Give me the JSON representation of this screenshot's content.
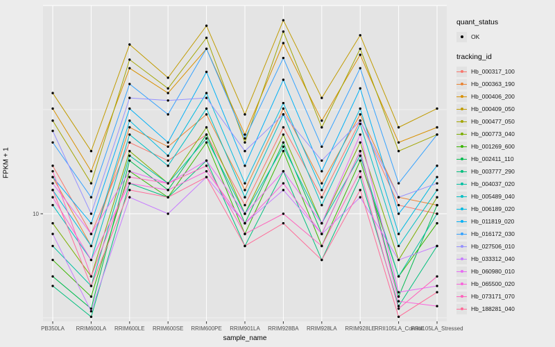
{
  "figure": {
    "background": "#ECECEC",
    "panel_background": "#E4E4E4",
    "gridline_color": "#FFFFFF",
    "tick_label_color": "#4D4D4D",
    "point_color": "#000000"
  },
  "legend": {
    "quant_status_title": "quant_status",
    "quant_status_items": [
      {
        "label": "OK",
        "shape": "point",
        "color": "#000000"
      }
    ],
    "tracking_id_title": "tracking_id"
  },
  "chart_data": {
    "type": "line",
    "title": "",
    "xlabel": "sample_name",
    "ylabel": "FPKM + 1",
    "y_scale": "log10",
    "ylim": [
      3,
      100
    ],
    "y_ticks": [
      10
    ],
    "y_minor_ticks": [
      3.1623,
      31.623
    ],
    "grid": true,
    "legend_position": "right",
    "categories": [
      "PB350LA",
      "RRIM600LA",
      "RRIM600LE",
      "RRIM600SE",
      "RRIM600PE",
      "RRIM901LA",
      "RRIM928BA",
      "RRIM928LA",
      "RRIM928LE",
      "RRII105LA_Control",
      "RRII105LA_Stressed"
    ],
    "series": [
      {
        "name": "Hb_000317_100",
        "color": "#F8766D",
        "values": [
          17,
          8,
          22,
          18,
          24,
          11,
          26,
          12,
          28,
          11,
          10
        ]
      },
      {
        "name": "Hb_000363_190",
        "color": "#EA8331",
        "values": [
          15,
          7,
          26,
          21,
          30,
          13,
          32,
          14,
          30,
          12,
          11
        ]
      },
      {
        "name": "Hb_000406_200",
        "color": "#D89000",
        "values": [
          32,
          16,
          50,
          38,
          62,
          24,
          66,
          28,
          58,
          22,
          26
        ]
      },
      {
        "name": "Hb_000409_050",
        "color": "#C09B00",
        "values": [
          38,
          20,
          65,
          45,
          80,
          30,
          85,
          36,
          72,
          26,
          32
        ]
      },
      {
        "name": "Hb_000477_050",
        "color": "#A3A500",
        "values": [
          28,
          14,
          55,
          40,
          70,
          22,
          75,
          26,
          62,
          20,
          24
        ]
      },
      {
        "name": "Hb_000773_040",
        "color": "#7CAE00",
        "values": [
          9,
          5,
          20,
          14,
          26,
          10,
          24,
          9,
          22,
          6,
          12
        ]
      },
      {
        "name": "Hb_001269_600",
        "color": "#39B600",
        "values": [
          6,
          4,
          16,
          12,
          22,
          8,
          20,
          7,
          18,
          5,
          9
        ]
      },
      {
        "name": "Hb_002411_110",
        "color": "#00BB4E",
        "values": [
          5,
          3.5,
          18,
          13,
          24,
          9,
          22,
          8,
          20,
          4,
          11
        ]
      },
      {
        "name": "Hb_003777_290",
        "color": "#00BF7D",
        "values": [
          4.5,
          3.2,
          14,
          12,
          18,
          7,
          16,
          6,
          15,
          3.6,
          7
        ]
      },
      {
        "name": "Hb_004037_020",
        "color": "#00C1A3",
        "values": [
          7,
          4.5,
          19,
          14,
          23,
          10,
          21,
          9,
          19,
          5,
          10
        ]
      },
      {
        "name": "Hb_005489_040",
        "color": "#00BFC4",
        "values": [
          11,
          6,
          24,
          17,
          32,
          12,
          30,
          11,
          27,
          7,
          13
        ]
      },
      {
        "name": "Hb_006189_020",
        "color": "#00BAE0",
        "values": [
          13,
          7,
          28,
          19,
          38,
          14,
          34,
          13,
          32,
          8,
          15
        ]
      },
      {
        "name": "Hb_011819_020",
        "color": "#00B0F6",
        "values": [
          15,
          9,
          32,
          22,
          48,
          17,
          44,
          16,
          40,
          10,
          17
        ]
      },
      {
        "name": "Hb_016172_030",
        "color": "#35A2FF",
        "values": [
          22,
          12,
          42,
          30,
          62,
          23,
          56,
          21,
          50,
          14,
          24
        ]
      },
      {
        "name": "Hb_027506_010",
        "color": "#9590FF",
        "values": [
          25,
          10,
          36,
          35,
          36,
          20,
          30,
          18,
          28,
          12,
          14
        ]
      },
      {
        "name": "Hb_033312_040",
        "color": "#C77CFF",
        "values": [
          8,
          3.4,
          12,
          10,
          15,
          9,
          13,
          8,
          12,
          6,
          7
        ]
      },
      {
        "name": "Hb_060980_010",
        "color": "#E76BF3",
        "values": [
          14,
          8,
          16,
          14,
          18,
          10,
          16,
          9,
          24,
          4.2,
          4.5
        ]
      },
      {
        "name": "Hb_065500_020",
        "color": "#FA62DB",
        "values": [
          12,
          6,
          14,
          13,
          16,
          9,
          14,
          8,
          20,
          3.8,
          3.6
        ]
      },
      {
        "name": "Hb_073171_070",
        "color": "#FF62BC",
        "values": [
          16,
          5,
          15,
          14,
          17,
          8,
          10,
          7,
          16,
          3.5,
          5
        ]
      },
      {
        "name": "Hb_188281_040",
        "color": "#FF6A98",
        "values": [
          13,
          4.5,
          13,
          12,
          15,
          7,
          9,
          6,
          13,
          3.2,
          4.2
        ]
      }
    ]
  }
}
